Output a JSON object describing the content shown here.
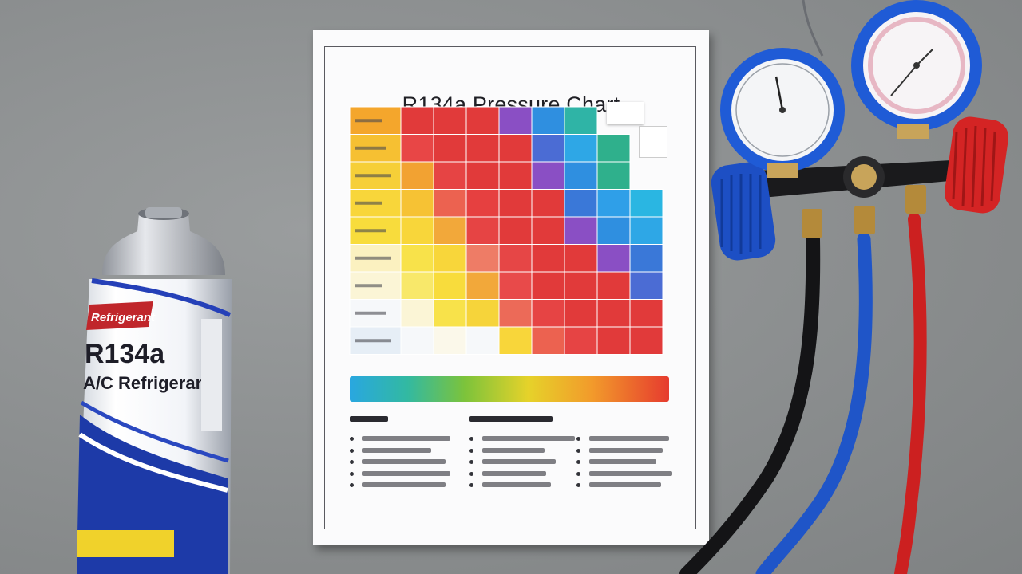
{
  "scene": {
    "description_colors": {
      "concrete": "#8e9192",
      "paper": "#fbfbfc",
      "hose_black": "#1c1c1e",
      "hose_blue": "#1f55c8",
      "hose_red": "#d42222",
      "gauge_blue": "#1f5bd6",
      "knob_red": "#d62828"
    }
  },
  "paper": {
    "title": "R134a Pressure Chart"
  },
  "grid": {
    "colors": [
      [
        "#f4a62c",
        "#e13a3a",
        "#e13a3a",
        "#e13a3a",
        "#8a4fc4",
        "#2f8fe0",
        "#2fb4a6"
      ],
      [
        "#f6c032",
        "#e84646",
        "#e13a3a",
        "#e13a3a",
        "#e13a3a",
        "#4b6cd4",
        "#2ea7e6",
        "#2fb08c"
      ],
      [
        "#f6cf38",
        "#f2a232",
        "#e64444",
        "#e13a3a",
        "#e13a3a",
        "#8a4fc4",
        "#2f8fe0",
        "#2fb08c"
      ],
      [
        "#f8d63a",
        "#f6c234",
        "#ec6250",
        "#e64040",
        "#e13a3a",
        "#e13a3a",
        "#3a78d8",
        "#2f9fe8",
        "#2ab6e2"
      ],
      [
        "#f8dc3c",
        "#f8d63a",
        "#f2a83a",
        "#e64444",
        "#e13a3a",
        "#e13a3a",
        "#8a4fc4",
        "#2f8fe0",
        "#2ea7e6"
      ],
      [
        "#fbf1c0",
        "#f8e24a",
        "#f8d63a",
        "#ee7c66",
        "#e64646",
        "#e13a3a",
        "#e13a3a",
        "#8a4fc4",
        "#3a78d8"
      ],
      [
        "#fbf5d6",
        "#f8e86a",
        "#f8dc3c",
        "#f2a83a",
        "#e84a4a",
        "#e13a3a",
        "#e13a3a",
        "#e13a3a",
        "#4b6cd4"
      ],
      [
        "#f6f8fa",
        "#fbf5d6",
        "#f8e24a",
        "#f6d43a",
        "#ec6a58",
        "#e64444",
        "#e13a3a",
        "#e13a3a",
        "#e13a3a"
      ],
      [
        "#e6eef6",
        "#f6f8fa",
        "#fbf8ea",
        "#f6f8fa",
        "#f8d63a",
        "#ec6250",
        "#e64444",
        "#e13a3a",
        "#e13a3a"
      ]
    ]
  },
  "can": {
    "brand": "Refrigerant",
    "label_line1": "R134a",
    "label_line2": "A/C Refrigerant"
  }
}
